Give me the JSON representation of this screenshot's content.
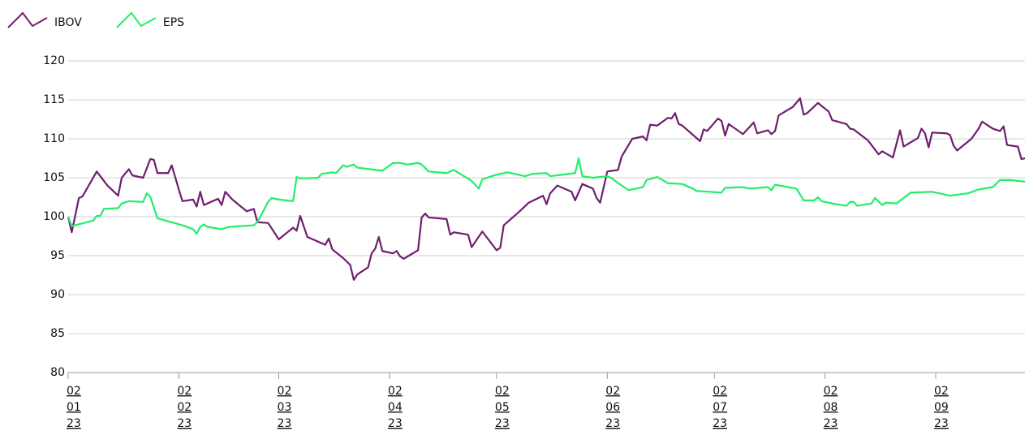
{
  "chart_data": {
    "type": "line",
    "xlim": [
      "2023-01-02",
      "2023-09-27"
    ],
    "xticks": [
      {
        "value": "2023-01-02",
        "label": [
          "02",
          "01",
          "23"
        ]
      },
      {
        "value": "2023-02-02",
        "label": [
          "02",
          "02",
          "23"
        ]
      },
      {
        "value": "2023-03-02",
        "label": [
          "02",
          "03",
          "23"
        ]
      },
      {
        "value": "2023-04-02",
        "label": [
          "02",
          "04",
          "23"
        ]
      },
      {
        "value": "2023-05-02",
        "label": [
          "02",
          "05",
          "23"
        ]
      },
      {
        "value": "2023-06-02",
        "label": [
          "02",
          "06",
          "23"
        ]
      },
      {
        "value": "2023-07-02",
        "label": [
          "02",
          "07",
          "23"
        ]
      },
      {
        "value": "2023-08-02",
        "label": [
          "02",
          "08",
          "23"
        ]
      },
      {
        "value": "2023-09-02",
        "label": [
          "02",
          "09",
          "23"
        ]
      }
    ],
    "ylim": [
      80,
      120
    ],
    "yticks": [
      80,
      85,
      90,
      95,
      100,
      105,
      110,
      115,
      120
    ],
    "grid": true,
    "legend": "top-left",
    "series": [
      {
        "name": "IBOV",
        "color": "#6e1f6e",
        "x": [
          "2023-01-02",
          "2023-01-03",
          "2023-01-05",
          "2023-01-06",
          "2023-01-10",
          "2023-01-13",
          "2023-01-16",
          "2023-01-17",
          "2023-01-19",
          "2023-01-20",
          "2023-01-23",
          "2023-01-25",
          "2023-01-26",
          "2023-01-27",
          "2023-01-30",
          "2023-01-31",
          "2023-02-02",
          "2023-02-03",
          "2023-02-06",
          "2023-02-07",
          "2023-02-08",
          "2023-02-09",
          "2023-02-13",
          "2023-02-14",
          "2023-02-15",
          "2023-02-17",
          "2023-02-21",
          "2023-02-23",
          "2023-02-24",
          "2023-02-27",
          "2023-03-02",
          "2023-03-06",
          "2023-03-07",
          "2023-03-08",
          "2023-03-10",
          "2023-03-15",
          "2023-03-16",
          "2023-03-17",
          "2023-03-20",
          "2023-03-22",
          "2023-03-23",
          "2023-03-24",
          "2023-03-27",
          "2023-03-28",
          "2023-03-29",
          "2023-03-30",
          "2023-03-31",
          "2023-04-03",
          "2023-04-04",
          "2023-04-05",
          "2023-04-06",
          "2023-04-10",
          "2023-04-11",
          "2023-04-12",
          "2023-04-13",
          "2023-04-18",
          "2023-04-19",
          "2023-04-20",
          "2023-04-24",
          "2023-04-25",
          "2023-04-28",
          "2023-05-02",
          "2023-05-03",
          "2023-05-04",
          "2023-05-08",
          "2023-05-11",
          "2023-05-15",
          "2023-05-16",
          "2023-05-17",
          "2023-05-19",
          "2023-05-23",
          "2023-05-24",
          "2023-05-26",
          "2023-05-29",
          "2023-05-30",
          "2023-05-31",
          "2023-06-02",
          "2023-06-05",
          "2023-06-06",
          "2023-06-09",
          "2023-06-12",
          "2023-06-13",
          "2023-06-14",
          "2023-06-16",
          "2023-06-19",
          "2023-06-20",
          "2023-06-21",
          "2023-06-22",
          "2023-06-23",
          "2023-06-28",
          "2023-06-29",
          "2023-06-30",
          "2023-07-03",
          "2023-07-04",
          "2023-07-05",
          "2023-07-06",
          "2023-07-10",
          "2023-07-13",
          "2023-07-14",
          "2023-07-17",
          "2023-07-18",
          "2023-07-19",
          "2023-07-20",
          "2023-07-24",
          "2023-07-26",
          "2023-07-27",
          "2023-07-28",
          "2023-07-31",
          "2023-08-03",
          "2023-08-04",
          "2023-08-08",
          "2023-08-09",
          "2023-08-10",
          "2023-08-14",
          "2023-08-17",
          "2023-08-18",
          "2023-08-21",
          "2023-08-23",
          "2023-08-24",
          "2023-08-28",
          "2023-08-29",
          "2023-08-30",
          "2023-08-31",
          "2023-09-01",
          "2023-09-05",
          "2023-09-06",
          "2023-09-07",
          "2023-09-08",
          "2023-09-12",
          "2023-09-14",
          "2023-09-15",
          "2023-09-18",
          "2023-09-20",
          "2023-09-21",
          "2023-09-22",
          "2023-09-25",
          "2023-09-26",
          "2023-09-27"
        ],
        "values": [
          100,
          98,
          102.4,
          102.6,
          105.8,
          104,
          102.7,
          105,
          106.1,
          105.3,
          105,
          107.4,
          107.3,
          105.6,
          105.6,
          106.6,
          103.5,
          102,
          102.2,
          101.3,
          103.2,
          101.5,
          102.3,
          101.5,
          103.2,
          102.2,
          100.7,
          101,
          99.3,
          99.2,
          97.1,
          98.6,
          98.2,
          100.1,
          97.4,
          96.4,
          97.2,
          95.8,
          94.7,
          93.8,
          91.9,
          92.6,
          93.5,
          95.3,
          95.9,
          97.4,
          95.6,
          95.3,
          95.6,
          94.9,
          94.6,
          95.7,
          99.9,
          100.4,
          99.9,
          99.7,
          97.7,
          98,
          97.7,
          96.1,
          98.1,
          95.7,
          96,
          98.9,
          100.5,
          101.8,
          102.7,
          101.6,
          103,
          104,
          103.2,
          102.1,
          104.2,
          103.6,
          102.4,
          101.8,
          105.8,
          106,
          107.7,
          110,
          110.3,
          109.8,
          111.8,
          111.7,
          112.7,
          112.6,
          113.3,
          111.9,
          111.7,
          109.7,
          111.2,
          111,
          112.6,
          112.3,
          110.4,
          111.9,
          110.6,
          112.1,
          110.7,
          111.1,
          110.6,
          111,
          113,
          114.1,
          115.2,
          113.1,
          113.3,
          114.6,
          113.5,
          112.4,
          111.9,
          111.3,
          111.2,
          109.8,
          108,
          108.4,
          107.6,
          111.1,
          109,
          110.1,
          111.3,
          110.7,
          108.9,
          110.8,
          110.7,
          110.5,
          109.1,
          108.5,
          110,
          111.3,
          112.2,
          111.3,
          111,
          111.6,
          109.2,
          109,
          107.4,
          107.5
        ]
      },
      {
        "name": "EPS",
        "color": "#22ee6a",
        "x": [
          "2023-01-02",
          "2023-01-03",
          "2023-01-09",
          "2023-01-10",
          "2023-01-11",
          "2023-01-12",
          "2023-01-16",
          "2023-01-17",
          "2023-01-19",
          "2023-01-23",
          "2023-01-24",
          "2023-01-25",
          "2023-01-27",
          "2023-02-03",
          "2023-02-06",
          "2023-02-07",
          "2023-02-08",
          "2023-02-09",
          "2023-02-10",
          "2023-02-14",
          "2023-02-16",
          "2023-02-23",
          "2023-02-24",
          "2023-02-27",
          "2023-02-28",
          "2023-03-02",
          "2023-03-06",
          "2023-03-07",
          "2023-03-08",
          "2023-03-13",
          "2023-03-14",
          "2023-03-17",
          "2023-03-18",
          "2023-03-20",
          "2023-03-21",
          "2023-03-23",
          "2023-03-24",
          "2023-03-31",
          "2023-04-03",
          "2023-04-05",
          "2023-04-07",
          "2023-04-10",
          "2023-04-11",
          "2023-04-13",
          "2023-04-18",
          "2023-04-20",
          "2023-04-25",
          "2023-04-27",
          "2023-04-28",
          "2023-05-02",
          "2023-05-05",
          "2023-05-10",
          "2023-05-12",
          "2023-05-16",
          "2023-05-17",
          "2023-05-24",
          "2023-05-25",
          "2023-05-26",
          "2023-05-29",
          "2023-06-02",
          "2023-06-03",
          "2023-06-06",
          "2023-06-08",
          "2023-06-12",
          "2023-06-13",
          "2023-06-16",
          "2023-06-19",
          "2023-06-23",
          "2023-06-26",
          "2023-06-27",
          "2023-07-04",
          "2023-07-05",
          "2023-07-10",
          "2023-07-12",
          "2023-07-17",
          "2023-07-18",
          "2023-07-19",
          "2023-07-25",
          "2023-07-27",
          "2023-07-30",
          "2023-07-31",
          "2023-08-01",
          "2023-08-04",
          "2023-08-08",
          "2023-08-09",
          "2023-08-10",
          "2023-08-11",
          "2023-08-15",
          "2023-08-16",
          "2023-08-18",
          "2023-08-19",
          "2023-08-22",
          "2023-08-26",
          "2023-09-01",
          "2023-09-06",
          "2023-09-11",
          "2023-09-14",
          "2023-09-18",
          "2023-09-20",
          "2023-09-23",
          "2023-09-27"
        ],
        "values": [
          100,
          98.8,
          99.5,
          100.1,
          100.1,
          101,
          101.1,
          101.7,
          102,
          101.9,
          103,
          102.6,
          99.8,
          98.9,
          98.4,
          97.8,
          98.7,
          99,
          98.7,
          98.4,
          98.7,
          98.9,
          99.3,
          101.9,
          102.4,
          102.2,
          102,
          105.1,
          104.9,
          105,
          105.5,
          105.7,
          105.6,
          106.6,
          106.4,
          106.7,
          106.3,
          105.9,
          106.9,
          106.9,
          106.7,
          106.9,
          106.7,
          105.8,
          105.6,
          106,
          104.6,
          103.6,
          104.8,
          105.4,
          105.7,
          105.2,
          105.5,
          105.6,
          105.2,
          105.6,
          107.5,
          105.2,
          105,
          105.2,
          105,
          104,
          103.4,
          103.8,
          104.7,
          105.1,
          104.3,
          104.2,
          103.6,
          103.3,
          103.1,
          103.7,
          103.8,
          103.6,
          103.8,
          103.4,
          104.1,
          103.6,
          102.1,
          102.1,
          102.5,
          102,
          101.7,
          101.4,
          101.9,
          101.9,
          101.4,
          101.7,
          102.4,
          101.5,
          101.8,
          101.7,
          103.1,
          103.2,
          102.7,
          103,
          103.5,
          103.8,
          104.7,
          104.7,
          104.5
        ]
      }
    ]
  }
}
